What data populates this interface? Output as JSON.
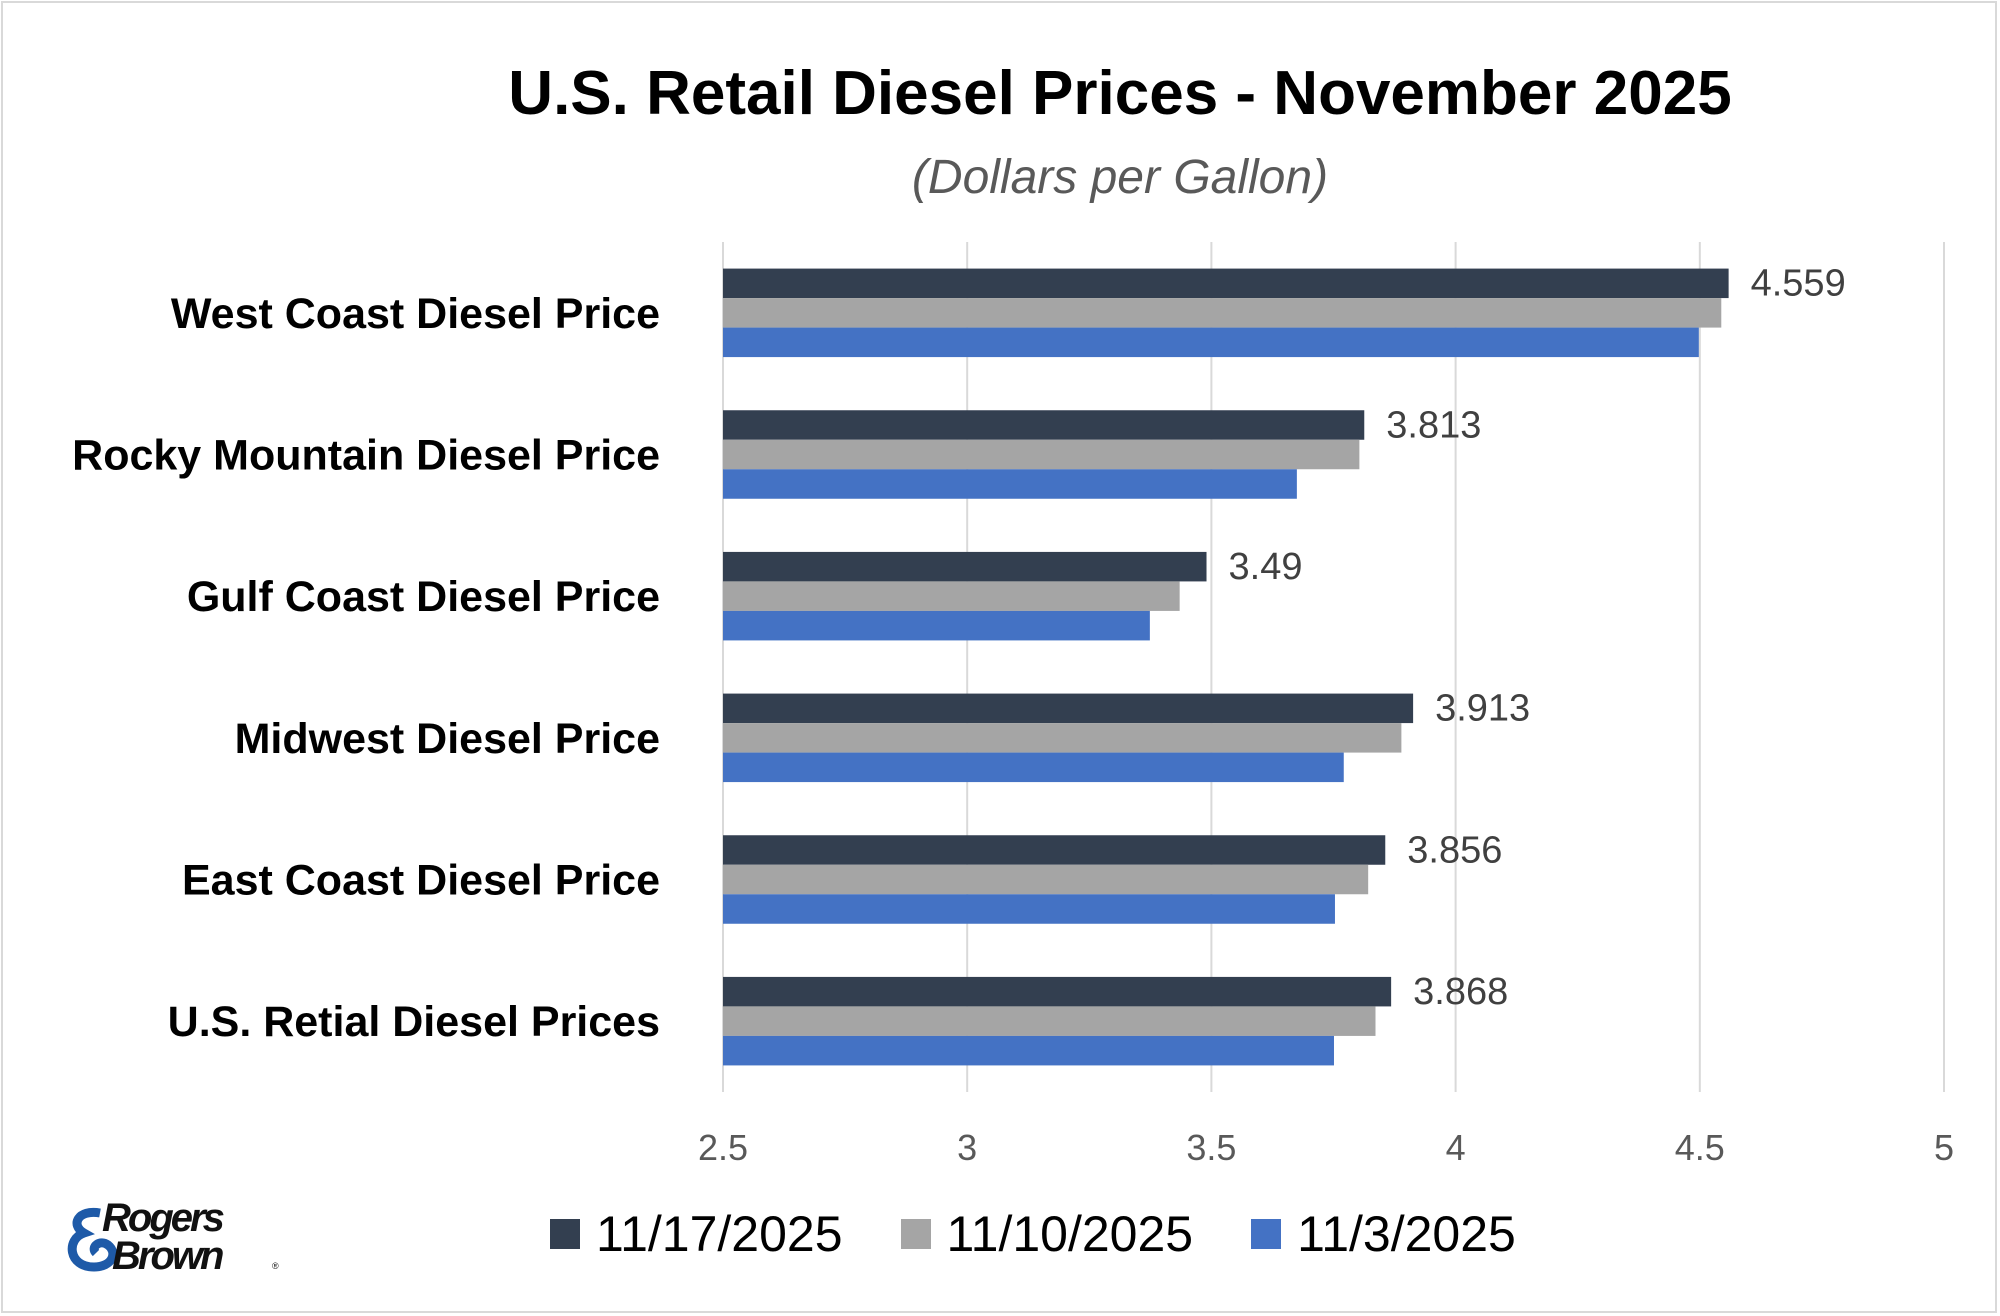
{
  "chart_data": {
    "type": "bar",
    "orientation": "horizontal",
    "title": "U.S. Retail Diesel Prices - November 2025",
    "subtitle": "(Dollars per Gallon)",
    "categories": [
      "West Coast Diesel Price",
      "Rocky Mountain Diesel Price",
      "Gulf Coast Diesel Price",
      "Midwest Diesel Price",
      "East Coast Diesel Price",
      "U.S. Retial Diesel Prices"
    ],
    "series": [
      {
        "name": "11/17/2025",
        "color": "#333f50",
        "values": [
          4.559,
          3.813,
          3.49,
          3.913,
          3.856,
          3.868
        ],
        "data_labels": [
          "4.559",
          "3.813",
          "3.49",
          "3.913",
          "3.856",
          "3.868"
        ]
      },
      {
        "name": "11/10/2025",
        "color": "#a5a5a5",
        "values": [
          4.544,
          3.803,
          3.435,
          3.889,
          3.821,
          3.836
        ]
      },
      {
        "name": "11/3/2025",
        "color": "#4472c4",
        "values": [
          4.498,
          3.675,
          3.374,
          3.771,
          3.753,
          3.751
        ]
      }
    ],
    "xlim": [
      2.5,
      5
    ],
    "xticks": [
      "2.5",
      "3",
      "3.5",
      "4",
      "4.5",
      "5"
    ],
    "grid": "vertical",
    "legend": "bottom"
  },
  "logo": {
    "text": "Rogers & Brown"
  }
}
